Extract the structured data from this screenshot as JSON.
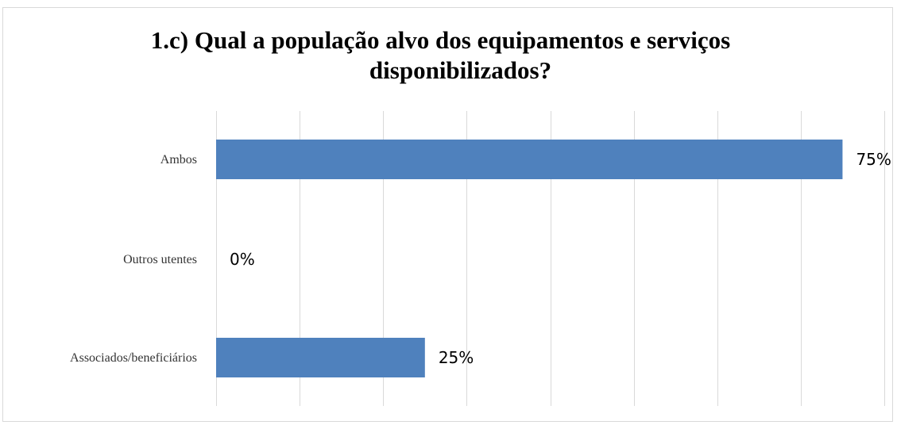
{
  "chart_data": {
    "type": "bar",
    "orientation": "horizontal",
    "title_line1": "1.c) Qual a população alvo dos equipamentos e serviços",
    "title_line2": "disponibilizados?",
    "categories": [
      "Ambos",
      "Outros utentes",
      "Associados/beneficiários"
    ],
    "values": [
      75,
      0,
      25
    ],
    "data_labels": [
      "75%",
      "0%",
      "25%"
    ],
    "xlim": [
      0,
      80
    ],
    "grid": true,
    "legend": "none",
    "colors": {
      "bar": "#4f81bd",
      "grid": "#d9d9d9",
      "border": "#d9d9d9"
    }
  }
}
